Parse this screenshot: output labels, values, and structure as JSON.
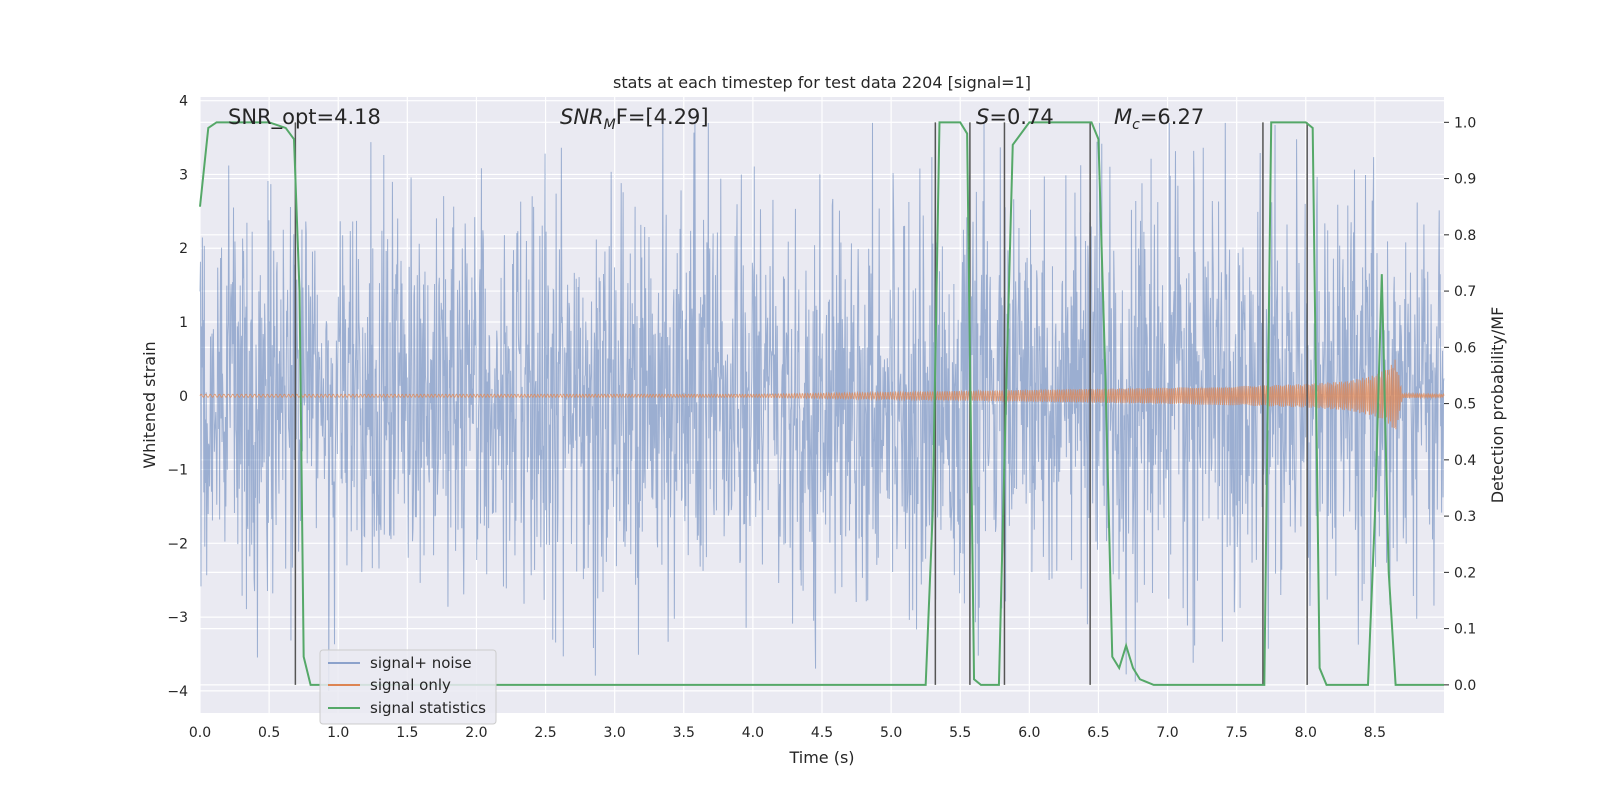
{
  "chart_data": {
    "type": "line",
    "title": "stats at each timestep for test data 2204 [signal=1]",
    "xlabel": "Time (s)",
    "ylabel_left": "Whitened strain",
    "ylabel_right": "Detection probability/MF",
    "xlim": [
      0,
      9.0
    ],
    "ylim_left": [
      -4.3,
      4.05
    ],
    "ylim_right": [
      -0.05,
      1.045
    ],
    "x_ticks": [
      0.0,
      0.5,
      1.0,
      1.5,
      2.0,
      2.5,
      3.0,
      3.5,
      4.0,
      4.5,
      5.0,
      5.5,
      6.0,
      6.5,
      7.0,
      7.5,
      8.0,
      8.5
    ],
    "x_tick_labels": [
      "0.0",
      "0.5",
      "1.0",
      "1.5",
      "2.0",
      "2.5",
      "3.0",
      "3.5",
      "4.0",
      "4.5",
      "5.0",
      "5.5",
      "6.0",
      "6.5",
      "7.0",
      "7.5",
      "8.0",
      "8.5"
    ],
    "y_left_ticks": [
      -4,
      -3,
      -2,
      -1,
      0,
      1,
      2,
      3,
      4
    ],
    "y_left_tick_labels": [
      "−4",
      "−3",
      "−2",
      "−1",
      "0",
      "1",
      "2",
      "3",
      "4"
    ],
    "y_right_ticks": [
      0.0,
      0.1,
      0.2,
      0.3,
      0.4,
      0.5,
      0.6,
      0.7,
      0.8,
      0.9,
      1.0
    ],
    "y_right_tick_labels": [
      "0.0",
      "0.1",
      "0.2",
      "0.3",
      "0.4",
      "0.5",
      "0.6",
      "0.7",
      "0.8",
      "0.9",
      "1.0"
    ],
    "grid": true,
    "legend_position": "lower-left",
    "annotations": {
      "snr_opt": "SNR_opt=4.18",
      "snr_mf_name": "SNR",
      "snr_mf_sub": "M",
      "snr_mf_rest": "F=[4.29]",
      "s_name": "S",
      "s_rest": "=0.74",
      "mc_name": "M",
      "mc_sub": "c",
      "mc_rest": "=6.27"
    },
    "series": [
      {
        "name": "signal+ noise",
        "color": "#4c72b0",
        "axis": "left",
        "kind": "noise",
        "amplitude_typical": 1.4,
        "y_range": [
          -4.0,
          3.7
        ]
      },
      {
        "name": "signal only",
        "color": "#dd8452",
        "axis": "left",
        "kind": "chirp",
        "envelope": {
          "x": [
            0,
            4.0,
            5.0,
            6.0,
            7.0,
            7.5,
            8.0,
            8.3,
            8.5,
            8.6,
            8.65,
            8.7,
            9.0
          ],
          "y": [
            0.02,
            0.02,
            0.05,
            0.08,
            0.11,
            0.13,
            0.16,
            0.2,
            0.28,
            0.38,
            0.5,
            0.03,
            0.02
          ]
        }
      },
      {
        "name": "signal statistics",
        "color": "#55a868",
        "axis": "right",
        "x": [
          0.0,
          0.06,
          0.12,
          0.5,
          0.62,
          0.68,
          0.72,
          0.75,
          0.8,
          5.25,
          5.3,
          5.35,
          5.5,
          5.55,
          5.6,
          5.65,
          5.7,
          5.78,
          5.83,
          5.88,
          6.0,
          6.1,
          6.45,
          6.5,
          6.55,
          6.6,
          6.65,
          6.7,
          6.75,
          6.8,
          6.9,
          7.5,
          7.7,
          7.75,
          8.0,
          8.05,
          8.1,
          8.15,
          8.45,
          8.5,
          8.55,
          8.6,
          8.65,
          8.7,
          9.0
        ],
        "y": [
          0.85,
          0.99,
          1.0,
          1.0,
          0.99,
          0.97,
          0.7,
          0.05,
          0.0,
          0.0,
          0.3,
          1.0,
          1.0,
          0.98,
          0.01,
          0.0,
          0.0,
          0.0,
          0.5,
          0.96,
          1.0,
          1.0,
          1.0,
          0.97,
          0.55,
          0.05,
          0.03,
          0.07,
          0.03,
          0.01,
          0.0,
          0.0,
          0.0,
          1.0,
          1.0,
          0.99,
          0.03,
          0.0,
          0.0,
          0.3,
          0.73,
          0.2,
          0.0,
          0.0,
          0.0
        ]
      }
    ],
    "vertical_lines": [
      0.69,
      5.32,
      5.57,
      5.82,
      6.44,
      7.69,
      8.01
    ],
    "vertical_line_color": "#555555"
  }
}
